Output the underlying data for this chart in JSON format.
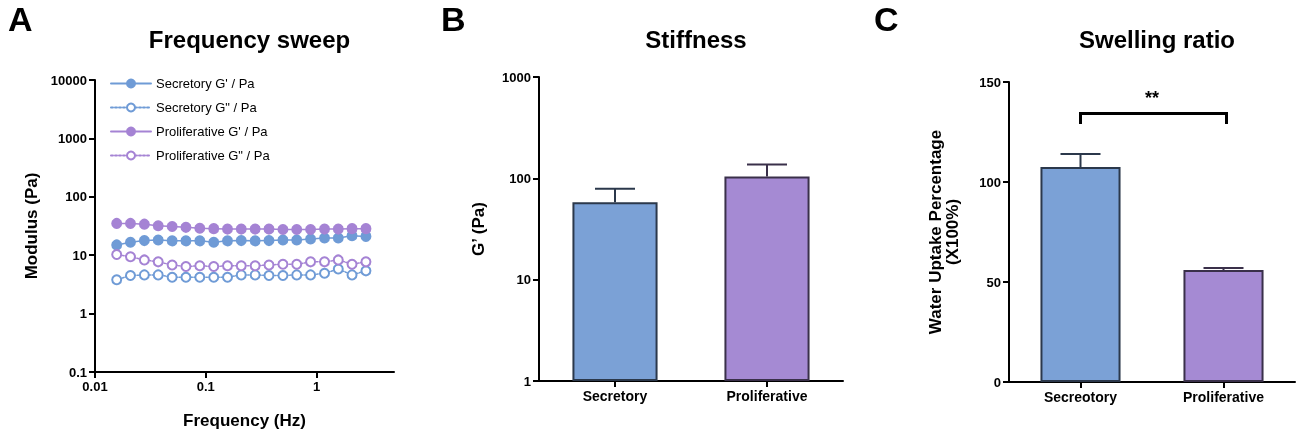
{
  "chart_data": [
    {
      "type": "line",
      "title": "Frequency sweep",
      "xlabel": "Frequency (Hz)",
      "ylabel": "Modulus (Pa)",
      "annotations": [
        "A"
      ],
      "log": "xy",
      "xlim": [
        0.01,
        5
      ],
      "xticks": [
        0.01,
        0.1,
        1
      ],
      "ylim": [
        0.1,
        10000
      ],
      "yticks": [
        0.1,
        1,
        10,
        100,
        1000,
        10000
      ],
      "grid": false,
      "legend": "top left",
      "marker": "circle",
      "x": [
        0.0157,
        0.0209,
        0.0279,
        0.0372,
        0.0497,
        0.0662,
        0.0883,
        0.118,
        0.157,
        0.209,
        0.279,
        0.372,
        0.497,
        0.662,
        0.883,
        1.18,
        1.57,
        2.09,
        2.79
      ],
      "series": [
        {
          "name": "Secretory G' / Pa",
          "color": "#6f9bd6",
          "line_style": "solid",
          "values": [
            15,
            16.7,
            17.8,
            18.2,
            17.6,
            17.6,
            17.6,
            16.7,
            17.6,
            17.8,
            17.6,
            17.8,
            18.2,
            18.2,
            19,
            19.7,
            19.7,
            21.5,
            21
          ]
        },
        {
          "name": "Secretory G\" / Pa",
          "color": "#6f9bd6",
          "line_style": "dotted",
          "values": [
            3.8,
            4.5,
            4.6,
            4.6,
            4.2,
            4.2,
            4.2,
            4.2,
            4.2,
            4.6,
            4.6,
            4.5,
            4.5,
            4.6,
            4.6,
            4.9,
            5.8,
            4.6,
            5.4
          ]
        },
        {
          "name": "Proliferative G' / Pa",
          "color": "#a583d4",
          "line_style": "solid",
          "values": [
            35,
            35,
            34,
            32,
            31,
            30,
            29,
            28.5,
            28,
            28,
            28,
            28,
            27.5,
            27.5,
            27.5,
            28,
            28,
            28.5,
            28.5
          ]
        },
        {
          "name": "Proliferative G\" / Pa",
          "color": "#a583d4",
          "line_style": "dotted",
          "values": [
            10.3,
            9.4,
            8.3,
            7.7,
            6.8,
            6.4,
            6.6,
            6.4,
            6.6,
            6.6,
            6.6,
            6.8,
            7,
            7,
            7.7,
            7.7,
            8.3,
            7,
            7.7
          ]
        }
      ]
    },
    {
      "type": "bar",
      "title": "Stiffness",
      "ylabel": "G’ (Pa)",
      "annotations": [
        "B"
      ],
      "log": true,
      "ylim": [
        1,
        1000
      ],
      "yticks": [
        1,
        10,
        100,
        1000
      ],
      "grid": false,
      "categories": [
        "Secretory",
        "Proliferative"
      ],
      "values": [
        58,
        104
      ],
      "colors": [
        "#7ba1d6",
        "#a58ad3"
      ],
      "errors": [
        [
          58,
          79
        ],
        [
          104,
          137
        ]
      ]
    },
    {
      "type": "bar",
      "title": "Swelling ratio",
      "ylabel": "Water Uptake Percentage\n(X100%)",
      "annotations": [
        "C",
        "**"
      ],
      "ylim": [
        0,
        150
      ],
      "yticks": [
        0,
        50,
        100,
        150
      ],
      "grid": false,
      "categories": [
        "Secreotory",
        "Proliferative"
      ],
      "values": [
        107.5,
        56
      ],
      "colors": [
        "#7ba1d6",
        "#a58ad3"
      ],
      "errors": [
        [
          107.5,
          114
        ],
        [
          56,
          57
        ]
      ]
    }
  ]
}
